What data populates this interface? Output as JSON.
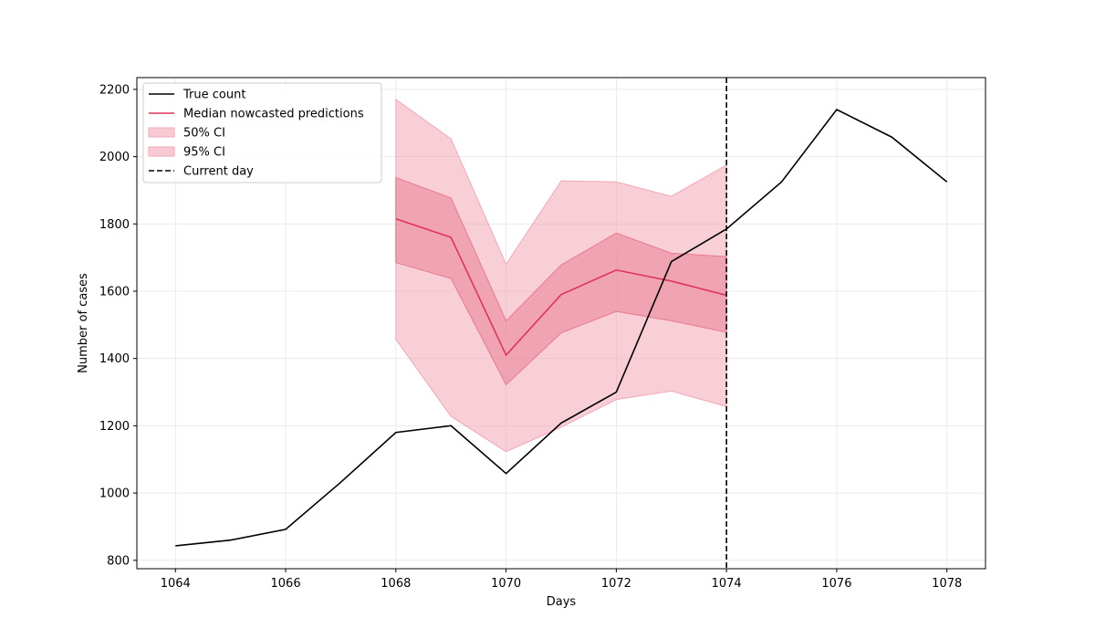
{
  "chart_data": {
    "type": "line",
    "title": "",
    "xlabel": "Days",
    "ylabel": "Number of cases",
    "xlim": [
      1063.3,
      1078.7
    ],
    "ylim": [
      775,
      2235
    ],
    "xticks": [
      1064,
      1066,
      1068,
      1070,
      1072,
      1074,
      1076,
      1078
    ],
    "yticks": [
      800,
      1000,
      1200,
      1400,
      1600,
      1800,
      2000,
      2200
    ],
    "grid": true,
    "legend_position": "upper-left",
    "legend": [
      "True count",
      "Median nowcasted predictions",
      "50% CI",
      "95% CI",
      "Current day"
    ],
    "colors": {
      "true_count": "#000000",
      "median": "#e0335a",
      "ci50": "#e8798f",
      "ci95": "#f2a7b7",
      "current_day": "#000000"
    },
    "true_count": {
      "x": [
        1064,
        1065,
        1066,
        1067,
        1068,
        1069,
        1070,
        1071,
        1072,
        1073,
        1074,
        1075,
        1076,
        1077,
        1078
      ],
      "y": [
        843,
        860,
        892,
        1032,
        1180,
        1200,
        1058,
        1208,
        1300,
        1688,
        1785,
        1925,
        2140,
        2058,
        1925
      ]
    },
    "median": {
      "x": [
        1068,
        1069,
        1070,
        1071,
        1072,
        1073,
        1074
      ],
      "y": [
        1815,
        1760,
        1410,
        1590,
        1663,
        1630,
        1588
      ]
    },
    "ci50": {
      "x": [
        1068,
        1069,
        1070,
        1071,
        1072,
        1073,
        1074
      ],
      "lower": [
        1685,
        1638,
        1322,
        1476,
        1540,
        1512,
        1478
      ],
      "upper": [
        1938,
        1877,
        1512,
        1678,
        1773,
        1713,
        1703
      ]
    },
    "ci95": {
      "x": [
        1068,
        1069,
        1070,
        1071,
        1072,
        1073,
        1074
      ],
      "lower": [
        1457,
        1228,
        1123,
        1196,
        1278,
        1303,
        1257
      ],
      "upper": [
        2170,
        2053,
        1680,
        1928,
        1925,
        1882,
        1975
      ]
    },
    "current_day": 1074
  }
}
